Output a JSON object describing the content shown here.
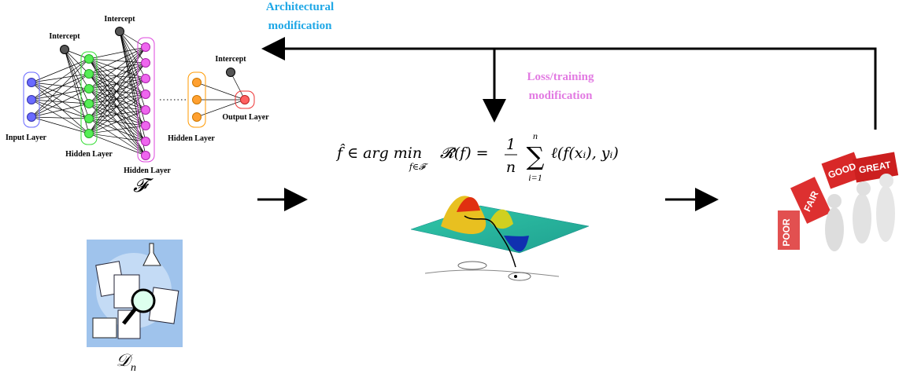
{
  "top_arrow": {
    "line1": "Architectural",
    "line2": "modification"
  },
  "mid_arrow": {
    "line1": "Loss/training",
    "line2": "modification"
  },
  "network": {
    "intercepts": [
      "Intercept",
      "Intercept",
      "Intercept"
    ],
    "input_label": "Input Layer",
    "hidden_labels": [
      "Hidden Layer",
      "Hidden Layer",
      "Hidden Layer"
    ],
    "output_label": "Output Layer",
    "symbol": "𝓕"
  },
  "dataset": {
    "symbol": "𝒟",
    "subscript": "n"
  },
  "formula": {
    "lhs": "f̂ ∈ arg min",
    "under": "f∈𝓕",
    "risk": "𝓡̂(f) =",
    "num": "1",
    "den": "n",
    "sum": "∑",
    "sum_top": "n",
    "sum_bottom": "i=1",
    "term": "ℓ(f(xᵢ), yᵢ)"
  },
  "blocks": [
    "POOR",
    "FAIR",
    "GOOD",
    "GREAT"
  ]
}
